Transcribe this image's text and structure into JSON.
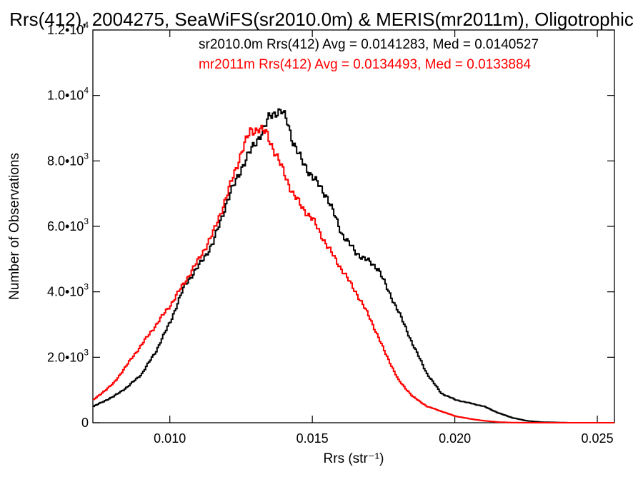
{
  "chart_data": {
    "type": "line",
    "title": "Rrs(412), 2004275, SeaWiFS(sr2010.0m) & MERIS(mr2011m), Oligotrophic",
    "xlabel": "Rrs (str⁻¹)",
    "ylabel": "Number of Observations",
    "xlim": [
      0.0073,
      0.0256
    ],
    "ylim": [
      0,
      12000
    ],
    "x_ticks": [
      {
        "value": 0.01,
        "label": "0.010"
      },
      {
        "value": 0.015,
        "label": "0.015"
      },
      {
        "value": 0.02,
        "label": "0.020"
      },
      {
        "value": 0.025,
        "label": "0.025"
      }
    ],
    "y_ticks": [
      {
        "value": 0,
        "mantissa": "0",
        "exp": ""
      },
      {
        "value": 2000,
        "mantissa": "2.0•10",
        "exp": "3"
      },
      {
        "value": 4000,
        "mantissa": "4.0•10",
        "exp": "3"
      },
      {
        "value": 6000,
        "mantissa": "6.0•10",
        "exp": "3"
      },
      {
        "value": 8000,
        "mantissa": "8.0•10",
        "exp": "3"
      },
      {
        "value": 10000,
        "mantissa": "1.0•10",
        "exp": "4"
      },
      {
        "value": 12000,
        "mantissa": "1.2•10",
        "exp": "4"
      }
    ],
    "step": true,
    "grid": false,
    "legend_position": "top",
    "series": [
      {
        "name": "sr2010.0m",
        "color": "#000000",
        "legend": "sr2010.0m Rrs(412) Avg = 0.0141283, Med = 0.0140527",
        "x": [
          0.0073,
          0.008,
          0.0085,
          0.009,
          0.0095,
          0.01,
          0.0105,
          0.011,
          0.0115,
          0.012,
          0.0125,
          0.013,
          0.0133,
          0.0135,
          0.0137,
          0.0139,
          0.0141,
          0.0143,
          0.0146,
          0.015,
          0.0155,
          0.016,
          0.0165,
          0.017,
          0.0173,
          0.0176,
          0.018,
          0.0185,
          0.019,
          0.0195,
          0.02,
          0.0205,
          0.021,
          0.0215,
          0.022,
          0.0225,
          0.023,
          0.0235,
          0.024,
          0.0256
        ],
        "y": [
          500,
          800,
          1100,
          1500,
          2200,
          3100,
          4200,
          4800,
          5500,
          6800,
          7800,
          8600,
          9000,
          9400,
          9500,
          9500,
          9200,
          8600,
          8000,
          7500,
          6900,
          5800,
          5200,
          4900,
          4700,
          4100,
          3400,
          2400,
          1500,
          900,
          700,
          600,
          500,
          300,
          150,
          60,
          20,
          10,
          0,
          0
        ]
      },
      {
        "name": "mr2011m",
        "color": "#ff0000",
        "legend": "mr2011m Rrs(412) Avg = 0.0134493, Med = 0.0133884",
        "x": [
          0.0073,
          0.008,
          0.0085,
          0.009,
          0.0095,
          0.01,
          0.0105,
          0.011,
          0.0115,
          0.012,
          0.0125,
          0.0128,
          0.0131,
          0.0134,
          0.0136,
          0.0138,
          0.014,
          0.0143,
          0.0146,
          0.015,
          0.0155,
          0.016,
          0.0165,
          0.017,
          0.0175,
          0.018,
          0.0185,
          0.019,
          0.0195,
          0.02,
          0.0205,
          0.021,
          0.0215,
          0.022,
          0.0225,
          0.023,
          0.0256
        ],
        "y": [
          700,
          1200,
          1800,
          2400,
          3000,
          3600,
          4300,
          5000,
          5800,
          7000,
          8300,
          8900,
          9000,
          8800,
          8400,
          8000,
          7600,
          7000,
          6600,
          6200,
          5400,
          4700,
          4000,
          3200,
          2200,
          1300,
          800,
          500,
          350,
          200,
          120,
          60,
          20,
          5,
          0,
          0,
          0
        ]
      }
    ]
  }
}
